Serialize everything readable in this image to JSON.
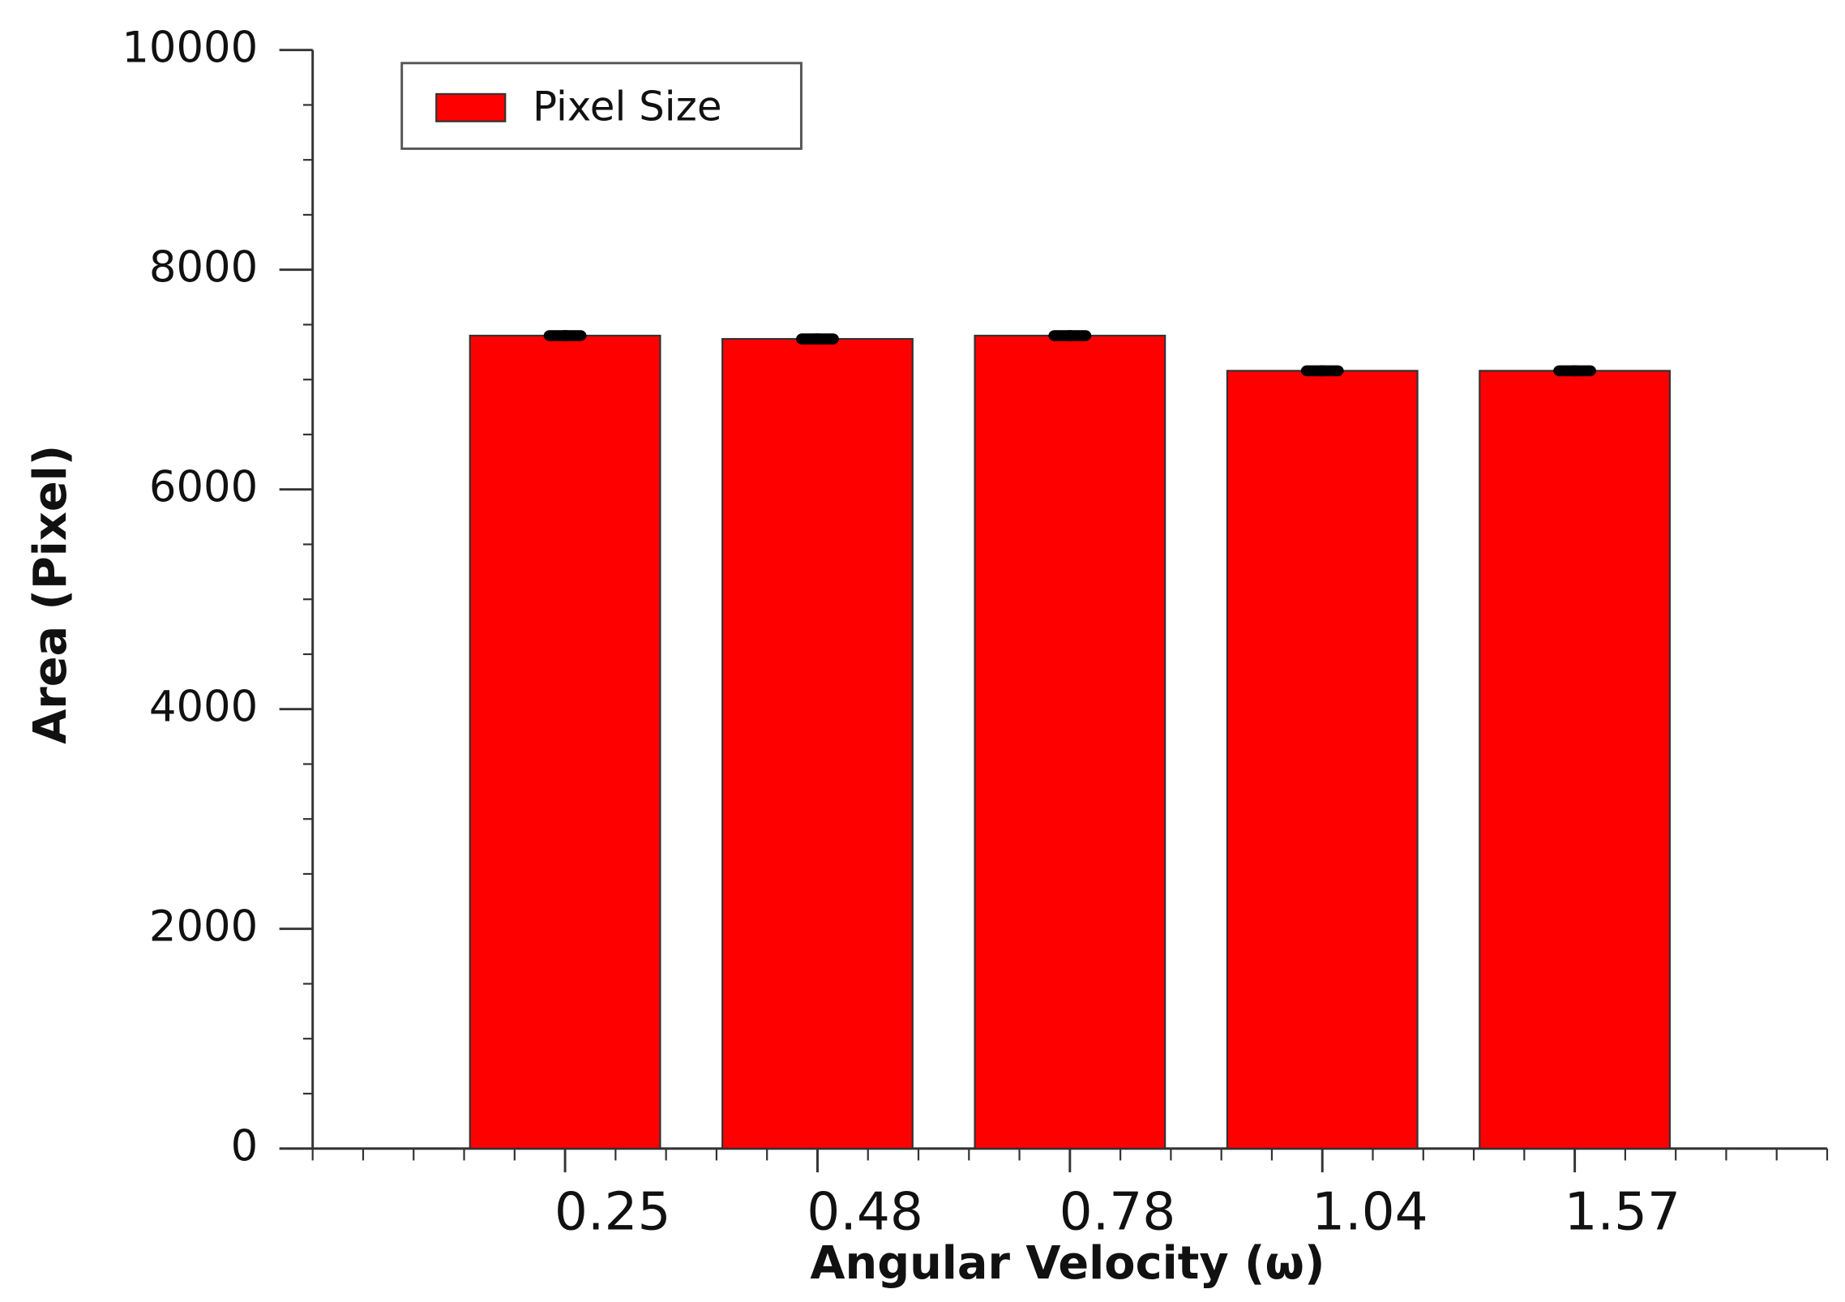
{
  "chart_data": {
    "type": "bar",
    "x_label": "Angular Velocity (ω)",
    "y_label": "Area (Pixel)",
    "categories": [
      "0.25",
      "0.48",
      "0.78",
      "1.04",
      "1.57"
    ],
    "series": [
      {
        "name": "Pixel Size",
        "color": "#ff0000",
        "values": [
          7400,
          7370,
          7400,
          7080,
          7080
        ],
        "errors": [
          50,
          50,
          50,
          50,
          50
        ]
      }
    ],
    "ylim": [
      0,
      10000
    ],
    "yticks": [
      0,
      2000,
      4000,
      6000,
      8000,
      10000
    ],
    "grid": false,
    "legend": "upper left"
  }
}
